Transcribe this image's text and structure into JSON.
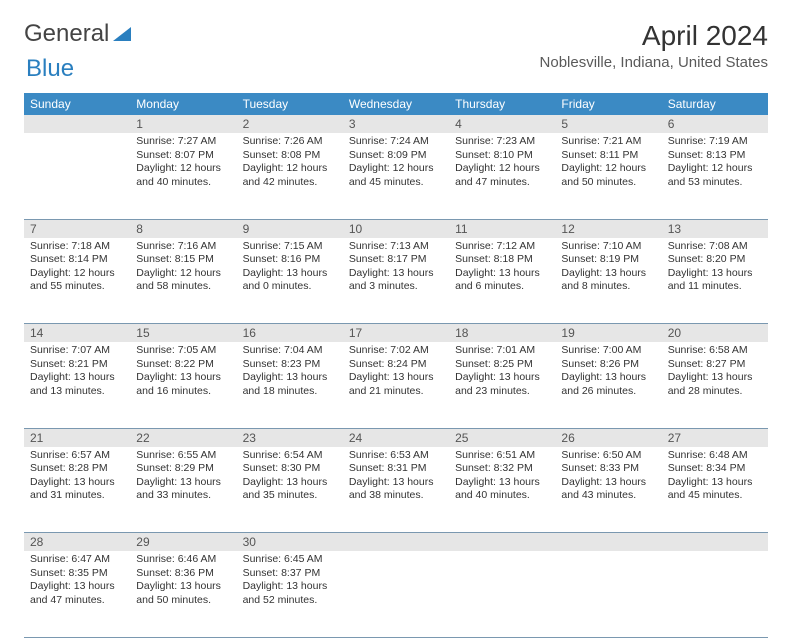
{
  "brand": {
    "part1": "General",
    "part2": "Blue"
  },
  "title": "April 2024",
  "location": "Noblesville, Indiana, United States",
  "colors": {
    "header_bg": "#3b8ac4",
    "header_fg": "#ffffff",
    "daynum_bg": "#e6e6e6",
    "rule": "#7a98b0",
    "brand_blue": "#2a7fbf"
  },
  "weekdays": [
    "Sunday",
    "Monday",
    "Tuesday",
    "Wednesday",
    "Thursday",
    "Friday",
    "Saturday"
  ],
  "weeks": [
    [
      null,
      {
        "n": "1",
        "sr": "7:27 AM",
        "ss": "8:07 PM",
        "dl": "12 hours and 40 minutes."
      },
      {
        "n": "2",
        "sr": "7:26 AM",
        "ss": "8:08 PM",
        "dl": "12 hours and 42 minutes."
      },
      {
        "n": "3",
        "sr": "7:24 AM",
        "ss": "8:09 PM",
        "dl": "12 hours and 45 minutes."
      },
      {
        "n": "4",
        "sr": "7:23 AM",
        "ss": "8:10 PM",
        "dl": "12 hours and 47 minutes."
      },
      {
        "n": "5",
        "sr": "7:21 AM",
        "ss": "8:11 PM",
        "dl": "12 hours and 50 minutes."
      },
      {
        "n": "6",
        "sr": "7:19 AM",
        "ss": "8:13 PM",
        "dl": "12 hours and 53 minutes."
      }
    ],
    [
      {
        "n": "7",
        "sr": "7:18 AM",
        "ss": "8:14 PM",
        "dl": "12 hours and 55 minutes."
      },
      {
        "n": "8",
        "sr": "7:16 AM",
        "ss": "8:15 PM",
        "dl": "12 hours and 58 minutes."
      },
      {
        "n": "9",
        "sr": "7:15 AM",
        "ss": "8:16 PM",
        "dl": "13 hours and 0 minutes."
      },
      {
        "n": "10",
        "sr": "7:13 AM",
        "ss": "8:17 PM",
        "dl": "13 hours and 3 minutes."
      },
      {
        "n": "11",
        "sr": "7:12 AM",
        "ss": "8:18 PM",
        "dl": "13 hours and 6 minutes."
      },
      {
        "n": "12",
        "sr": "7:10 AM",
        "ss": "8:19 PM",
        "dl": "13 hours and 8 minutes."
      },
      {
        "n": "13",
        "sr": "7:08 AM",
        "ss": "8:20 PM",
        "dl": "13 hours and 11 minutes."
      }
    ],
    [
      {
        "n": "14",
        "sr": "7:07 AM",
        "ss": "8:21 PM",
        "dl": "13 hours and 13 minutes."
      },
      {
        "n": "15",
        "sr": "7:05 AM",
        "ss": "8:22 PM",
        "dl": "13 hours and 16 minutes."
      },
      {
        "n": "16",
        "sr": "7:04 AM",
        "ss": "8:23 PM",
        "dl": "13 hours and 18 minutes."
      },
      {
        "n": "17",
        "sr": "7:02 AM",
        "ss": "8:24 PM",
        "dl": "13 hours and 21 minutes."
      },
      {
        "n": "18",
        "sr": "7:01 AM",
        "ss": "8:25 PM",
        "dl": "13 hours and 23 minutes."
      },
      {
        "n": "19",
        "sr": "7:00 AM",
        "ss": "8:26 PM",
        "dl": "13 hours and 26 minutes."
      },
      {
        "n": "20",
        "sr": "6:58 AM",
        "ss": "8:27 PM",
        "dl": "13 hours and 28 minutes."
      }
    ],
    [
      {
        "n": "21",
        "sr": "6:57 AM",
        "ss": "8:28 PM",
        "dl": "13 hours and 31 minutes."
      },
      {
        "n": "22",
        "sr": "6:55 AM",
        "ss": "8:29 PM",
        "dl": "13 hours and 33 minutes."
      },
      {
        "n": "23",
        "sr": "6:54 AM",
        "ss": "8:30 PM",
        "dl": "13 hours and 35 minutes."
      },
      {
        "n": "24",
        "sr": "6:53 AM",
        "ss": "8:31 PM",
        "dl": "13 hours and 38 minutes."
      },
      {
        "n": "25",
        "sr": "6:51 AM",
        "ss": "8:32 PM",
        "dl": "13 hours and 40 minutes."
      },
      {
        "n": "26",
        "sr": "6:50 AM",
        "ss": "8:33 PM",
        "dl": "13 hours and 43 minutes."
      },
      {
        "n": "27",
        "sr": "6:48 AM",
        "ss": "8:34 PM",
        "dl": "13 hours and 45 minutes."
      }
    ],
    [
      {
        "n": "28",
        "sr": "6:47 AM",
        "ss": "8:35 PM",
        "dl": "13 hours and 47 minutes."
      },
      {
        "n": "29",
        "sr": "6:46 AM",
        "ss": "8:36 PM",
        "dl": "13 hours and 50 minutes."
      },
      {
        "n": "30",
        "sr": "6:45 AM",
        "ss": "8:37 PM",
        "dl": "13 hours and 52 minutes."
      },
      null,
      null,
      null,
      null
    ]
  ],
  "labels": {
    "sunrise": "Sunrise:",
    "sunset": "Sunset:",
    "daylight": "Daylight:"
  }
}
